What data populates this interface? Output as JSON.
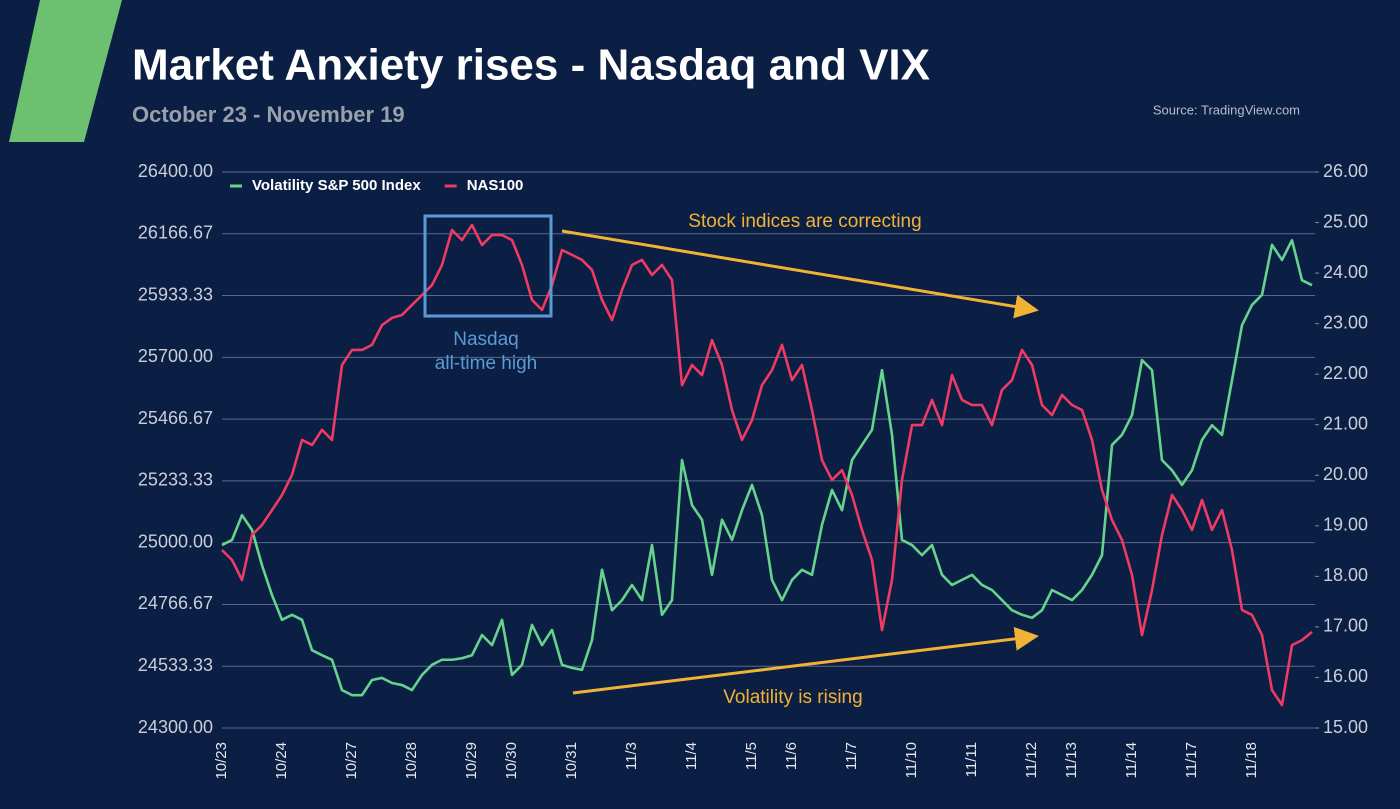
{
  "chart_data": {
    "type": "line",
    "title": "Market Anxiety rises - Nasdaq and VIX",
    "subtitle": "October 23 - November 19",
    "source": "Source: TradingView.com",
    "annotations": [
      "Stock indices are correcting",
      "Volatility is rising",
      "Nasdaq",
      "all-time high"
    ],
    "categories": [
      "10/23",
      null,
      null,
      null,
      null,
      null,
      "10/24",
      null,
      null,
      null,
      null,
      null,
      null,
      "10/27",
      null,
      null,
      null,
      null,
      null,
      "10/28",
      null,
      null,
      null,
      null,
      null,
      "10/29",
      null,
      null,
      null,
      "10/30",
      null,
      null,
      null,
      null,
      null,
      "10/31",
      null,
      null,
      null,
      null,
      null,
      "11/3",
      null,
      null,
      null,
      null,
      null,
      "11/4",
      null,
      null,
      null,
      null,
      null,
      "11/5",
      null,
      null,
      null,
      "11/6",
      null,
      null,
      null,
      null,
      null,
      "11/7",
      null,
      null,
      null,
      null,
      null,
      "11/10",
      null,
      null,
      null,
      null,
      null,
      "11/11",
      null,
      null,
      null,
      null,
      null,
      "11/12",
      null,
      null,
      null,
      "11/13",
      null,
      null,
      null,
      null,
      null,
      "11/14",
      null,
      null,
      null,
      null,
      null,
      "11/17",
      null,
      null,
      null,
      null,
      null,
      "11/18",
      null,
      null,
      null,
      null,
      null,
      null
    ],
    "series": [
      {
        "name": "Volatility S&P 500 Index",
        "color": "#66d38c",
        "axis": "y2",
        "values": [
          18.62,
          18.72,
          19.21,
          18.92,
          18.22,
          17.63,
          17.14,
          17.24,
          17.14,
          16.54,
          16.44,
          16.35,
          15.75,
          15.65,
          15.65,
          15.95,
          15.99,
          15.89,
          15.85,
          15.75,
          16.05,
          16.25,
          16.35,
          16.35,
          16.38,
          16.44,
          16.84,
          16.64,
          17.14,
          16.05,
          16.25,
          17.04,
          16.64,
          16.94,
          16.25,
          16.19,
          16.15,
          16.74,
          18.13,
          17.33,
          17.53,
          17.83,
          17.53,
          18.62,
          17.24,
          17.53,
          20.3,
          19.41,
          19.12,
          18.03,
          19.12,
          18.72,
          19.31,
          19.81,
          19.21,
          17.93,
          17.53,
          17.93,
          18.13,
          18.03,
          19.02,
          19.71,
          19.31,
          20.3,
          20.6,
          20.9,
          22.08,
          20.8,
          18.72,
          18.62,
          18.42,
          18.62,
          18.03,
          17.83,
          17.93,
          18.03,
          17.83,
          17.73,
          17.53,
          17.33,
          17.24,
          17.18,
          17.33,
          17.73,
          17.63,
          17.53,
          17.73,
          18.03,
          18.42,
          20.6,
          20.8,
          21.19,
          22.28,
          22.08,
          20.3,
          20.1,
          19.81,
          20.1,
          20.7,
          20.99,
          20.8,
          21.88,
          22.97,
          23.37,
          23.57,
          24.56,
          24.26,
          24.65,
          23.86,
          23.76
        ]
      },
      {
        "name": "NAS100",
        "color": "#ef3a62",
        "axis": "y",
        "values": [
          24972,
          24935,
          24859,
          25029,
          25067,
          25123,
          25180,
          25256,
          25388,
          25369,
          25426,
          25388,
          25671,
          25728,
          25728,
          25747,
          25822,
          25849,
          25860,
          25898,
          25935,
          25973,
          26049,
          26181,
          26143,
          26200,
          26124,
          26162,
          26162,
          26143,
          26049,
          25917,
          25879,
          25973,
          26105,
          26087,
          26068,
          26030,
          25917,
          25841,
          25954,
          26049,
          26068,
          26011,
          26049,
          25992,
          25595,
          25671,
          25633,
          25765,
          25671,
          25501,
          25388,
          25463,
          25595,
          25652,
          25747,
          25614,
          25671,
          25501,
          25312,
          25237,
          25274,
          25180,
          25048,
          24935,
          24670,
          24859,
          25237,
          25444,
          25444,
          25539,
          25444,
          25633,
          25539,
          25520,
          25520,
          25444,
          25577,
          25614,
          25728,
          25671,
          25520,
          25482,
          25558,
          25520,
          25501,
          25388,
          25199,
          25086,
          25010,
          24878,
          24651,
          24821,
          25029,
          25180,
          25123,
          25048,
          25161,
          25048,
          25123,
          24972,
          24746,
          24727,
          24651,
          24443,
          24387,
          24613,
          24632,
          24663
        ]
      }
    ],
    "ylim": [
      24300,
      26400
    ],
    "yticks": [
      {
        "value": 26400,
        "label": "26400.00"
      },
      {
        "value": 26166.67,
        "label": "26166.67"
      },
      {
        "value": 25933.33,
        "label": "25933.33"
      },
      {
        "value": 25700,
        "label": "25700.00"
      },
      {
        "value": 25466.67,
        "label": "25466.67"
      },
      {
        "value": 25233.33,
        "label": "25233.33"
      },
      {
        "value": 25000,
        "label": "25000.00"
      },
      {
        "value": 24766.67,
        "label": "24766.67"
      },
      {
        "value": 24533.33,
        "label": "24533.33"
      },
      {
        "value": 24300,
        "label": "24300.00"
      }
    ],
    "y2lim": [
      15,
      26
    ],
    "y2ticks": [
      {
        "value": 26,
        "label": "26.00"
      },
      {
        "value": 25,
        "label": "25.00"
      },
      {
        "value": 24,
        "label": "24.00"
      },
      {
        "value": 23,
        "label": "23.00"
      },
      {
        "value": 22,
        "label": "22.00"
      },
      {
        "value": 21,
        "label": "21.00"
      },
      {
        "value": 20,
        "label": "20.00"
      },
      {
        "value": 19,
        "label": "19.00"
      },
      {
        "value": 18,
        "label": "18.00"
      },
      {
        "value": 17,
        "label": "17.00"
      },
      {
        "value": 16,
        "label": "16.00"
      },
      {
        "value": 15,
        "label": "15.00"
      }
    ],
    "grid": true,
    "legend": "top-left"
  }
}
